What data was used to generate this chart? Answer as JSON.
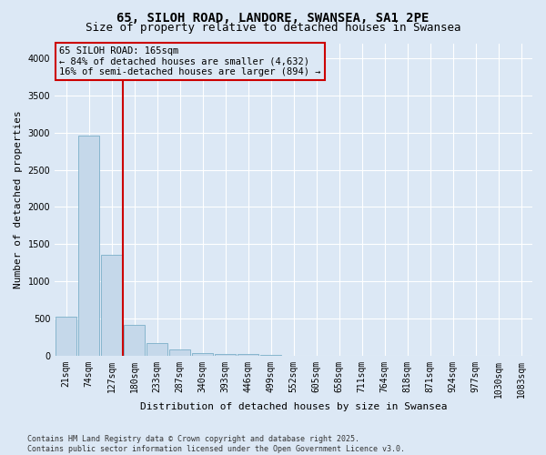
{
  "title": "65, SILOH ROAD, LANDORE, SWANSEA, SA1 2PE",
  "subtitle": "Size of property relative to detached houses in Swansea",
  "xlabel": "Distribution of detached houses by size in Swansea",
  "ylabel": "Number of detached properties",
  "categories": [
    "21sqm",
    "74sqm",
    "127sqm",
    "180sqm",
    "233sqm",
    "287sqm",
    "340sqm",
    "393sqm",
    "446sqm",
    "499sqm",
    "552sqm",
    "605sqm",
    "658sqm",
    "711sqm",
    "764sqm",
    "818sqm",
    "871sqm",
    "924sqm",
    "977sqm",
    "1030sqm",
    "1083sqm"
  ],
  "values": [
    530,
    2960,
    1360,
    420,
    175,
    90,
    40,
    25,
    22,
    10,
    0,
    0,
    0,
    0,
    0,
    0,
    0,
    0,
    0,
    0,
    0
  ],
  "bar_color": "#c5d8ea",
  "bar_edge_color": "#7bafc8",
  "vline_color": "#cc0000",
  "vline_x": 2.5,
  "annotation_box_text": "65 SILOH ROAD: 165sqm\n← 84% of detached houses are smaller (4,632)\n16% of semi-detached houses are larger (894) →",
  "annotation_box_color": "#cc0000",
  "ylim": [
    0,
    4200
  ],
  "yticks": [
    0,
    500,
    1000,
    1500,
    2000,
    2500,
    3000,
    3500,
    4000
  ],
  "background_color": "#dce8f5",
  "grid_color": "#ffffff",
  "footer": "Contains HM Land Registry data © Crown copyright and database right 2025.\nContains public sector information licensed under the Open Government Licence v3.0.",
  "title_fontsize": 10,
  "subtitle_fontsize": 9,
  "axis_label_fontsize": 8,
  "tick_fontsize": 7,
  "annotation_fontsize": 7.5,
  "footer_fontsize": 6
}
